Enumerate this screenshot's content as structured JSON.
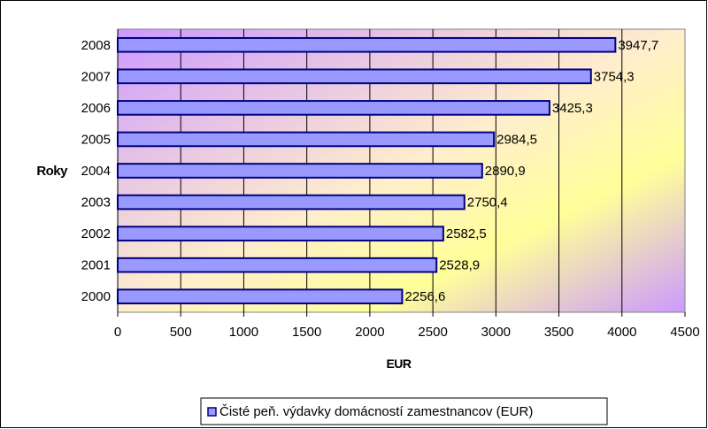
{
  "chart_data": {
    "type": "bar",
    "orientation": "horizontal",
    "categories": [
      "2000",
      "2001",
      "2002",
      "2003",
      "2004",
      "2005",
      "2006",
      "2007",
      "2008"
    ],
    "series": [
      {
        "name": "Čisté peň. výdavky domácností zamestnancov (EUR)",
        "values": [
          2256.6,
          2528.9,
          2582.5,
          2750.4,
          2890.9,
          2984.5,
          3425.3,
          3754.3,
          3947.7
        ],
        "labels": [
          "2256,6",
          "2528,9",
          "2582,5",
          "2750,4",
          "2890,9",
          "2984,5",
          "3425,3",
          "3754,3",
          "3947,7"
        ],
        "color": "#9999ff"
      }
    ],
    "xlabel": "EUR",
    "ylabel": "Roky",
    "xlim": [
      0,
      4500
    ],
    "xticks": [
      0,
      500,
      1000,
      1500,
      2000,
      2500,
      3000,
      3500,
      4000,
      4500
    ],
    "grid": true,
    "legend": "bottom",
    "colors": {
      "bar_fill": "#9999ff",
      "bar_stroke": "#000080",
      "gradient_start": "#cc99ff",
      "gradient_end": "#ffff99",
      "gridline": "#000000"
    }
  }
}
